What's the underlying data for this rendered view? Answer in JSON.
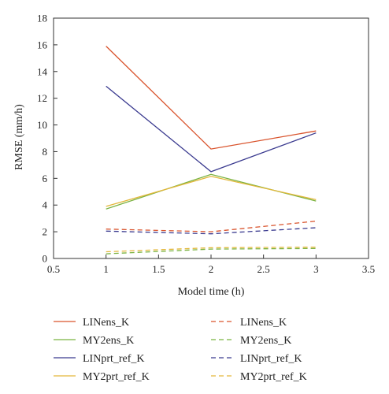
{
  "chart_data": {
    "type": "line",
    "xlabel": "Model time (h)",
    "ylabel": "RMSE (mm/h)",
    "xlim": [
      0.5,
      3.5
    ],
    "ylim": [
      0,
      18
    ],
    "xticks": [
      0.5,
      1,
      1.5,
      2,
      2.5,
      3,
      3.5
    ],
    "yticks": [
      0,
      2,
      4,
      6,
      8,
      10,
      12,
      14,
      16,
      18
    ],
    "grid": false,
    "legend_placement": "bottom, two columns",
    "series": [
      {
        "name": "LINens_K",
        "style": "solid",
        "color": "#d9532c",
        "x": [
          1,
          2,
          3
        ],
        "y": [
          15.9,
          8.2,
          9.55
        ]
      },
      {
        "name": "MY2ens_K",
        "style": "solid",
        "color": "#7bb341",
        "x": [
          1,
          2,
          3
        ],
        "y": [
          3.7,
          6.3,
          4.3
        ]
      },
      {
        "name": "LINprt_ref_K",
        "style": "solid",
        "color": "#3a3a8f",
        "x": [
          1,
          2,
          3
        ],
        "y": [
          12.9,
          6.5,
          9.4
        ]
      },
      {
        "name": "MY2prt_ref_K",
        "style": "solid",
        "color": "#e3b73a",
        "x": [
          1,
          2,
          3
        ],
        "y": [
          3.9,
          6.15,
          4.4
        ]
      },
      {
        "name": "LINens_K",
        "style": "dashed",
        "color": "#d9532c",
        "x": [
          1,
          2,
          3
        ],
        "y": [
          2.2,
          2.0,
          2.8
        ]
      },
      {
        "name": "MY2ens_K",
        "style": "dashed",
        "color": "#7bb341",
        "x": [
          1,
          2,
          3
        ],
        "y": [
          0.35,
          0.7,
          0.75
        ]
      },
      {
        "name": "LINprt_ref_K",
        "style": "dashed",
        "color": "#3a3a8f",
        "x": [
          1,
          2,
          3
        ],
        "y": [
          2.05,
          1.85,
          2.3
        ]
      },
      {
        "name": "MY2prt_ref_K",
        "style": "dashed",
        "color": "#e3b73a",
        "x": [
          1,
          2,
          3
        ],
        "y": [
          0.5,
          0.8,
          0.85
        ]
      }
    ]
  }
}
